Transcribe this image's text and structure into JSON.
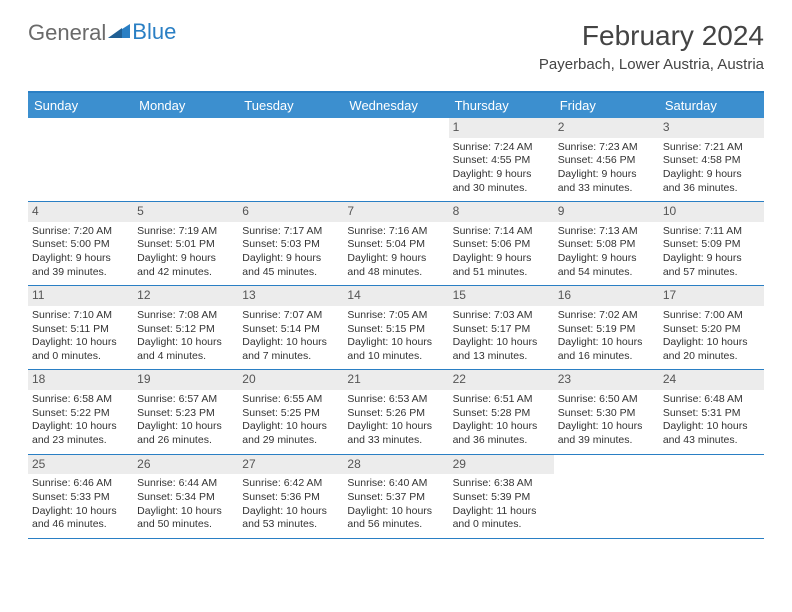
{
  "brand": {
    "text1": "General",
    "text2": "Blue"
  },
  "title": "February 2024",
  "location": "Payerbach, Lower Austria, Austria",
  "colors": {
    "header_bg": "#3c8fcf",
    "border": "#2a7fc4",
    "daynum_bg": "#ececec",
    "text": "#333333",
    "logo_blue": "#2a7fc4"
  },
  "day_names": [
    "Sunday",
    "Monday",
    "Tuesday",
    "Wednesday",
    "Thursday",
    "Friday",
    "Saturday"
  ],
  "weeks": [
    [
      {
        "day": null
      },
      {
        "day": null
      },
      {
        "day": null
      },
      {
        "day": null
      },
      {
        "day": "1",
        "sunrise": "Sunrise: 7:24 AM",
        "sunset": "Sunset: 4:55 PM",
        "daylight": "Daylight: 9 hours and 30 minutes."
      },
      {
        "day": "2",
        "sunrise": "Sunrise: 7:23 AM",
        "sunset": "Sunset: 4:56 PM",
        "daylight": "Daylight: 9 hours and 33 minutes."
      },
      {
        "day": "3",
        "sunrise": "Sunrise: 7:21 AM",
        "sunset": "Sunset: 4:58 PM",
        "daylight": "Daylight: 9 hours and 36 minutes."
      }
    ],
    [
      {
        "day": "4",
        "sunrise": "Sunrise: 7:20 AM",
        "sunset": "Sunset: 5:00 PM",
        "daylight": "Daylight: 9 hours and 39 minutes."
      },
      {
        "day": "5",
        "sunrise": "Sunrise: 7:19 AM",
        "sunset": "Sunset: 5:01 PM",
        "daylight": "Daylight: 9 hours and 42 minutes."
      },
      {
        "day": "6",
        "sunrise": "Sunrise: 7:17 AM",
        "sunset": "Sunset: 5:03 PM",
        "daylight": "Daylight: 9 hours and 45 minutes."
      },
      {
        "day": "7",
        "sunrise": "Sunrise: 7:16 AM",
        "sunset": "Sunset: 5:04 PM",
        "daylight": "Daylight: 9 hours and 48 minutes."
      },
      {
        "day": "8",
        "sunrise": "Sunrise: 7:14 AM",
        "sunset": "Sunset: 5:06 PM",
        "daylight": "Daylight: 9 hours and 51 minutes."
      },
      {
        "day": "9",
        "sunrise": "Sunrise: 7:13 AM",
        "sunset": "Sunset: 5:08 PM",
        "daylight": "Daylight: 9 hours and 54 minutes."
      },
      {
        "day": "10",
        "sunrise": "Sunrise: 7:11 AM",
        "sunset": "Sunset: 5:09 PM",
        "daylight": "Daylight: 9 hours and 57 minutes."
      }
    ],
    [
      {
        "day": "11",
        "sunrise": "Sunrise: 7:10 AM",
        "sunset": "Sunset: 5:11 PM",
        "daylight": "Daylight: 10 hours and 0 minutes."
      },
      {
        "day": "12",
        "sunrise": "Sunrise: 7:08 AM",
        "sunset": "Sunset: 5:12 PM",
        "daylight": "Daylight: 10 hours and 4 minutes."
      },
      {
        "day": "13",
        "sunrise": "Sunrise: 7:07 AM",
        "sunset": "Sunset: 5:14 PM",
        "daylight": "Daylight: 10 hours and 7 minutes."
      },
      {
        "day": "14",
        "sunrise": "Sunrise: 7:05 AM",
        "sunset": "Sunset: 5:15 PM",
        "daylight": "Daylight: 10 hours and 10 minutes."
      },
      {
        "day": "15",
        "sunrise": "Sunrise: 7:03 AM",
        "sunset": "Sunset: 5:17 PM",
        "daylight": "Daylight: 10 hours and 13 minutes."
      },
      {
        "day": "16",
        "sunrise": "Sunrise: 7:02 AM",
        "sunset": "Sunset: 5:19 PM",
        "daylight": "Daylight: 10 hours and 16 minutes."
      },
      {
        "day": "17",
        "sunrise": "Sunrise: 7:00 AM",
        "sunset": "Sunset: 5:20 PM",
        "daylight": "Daylight: 10 hours and 20 minutes."
      }
    ],
    [
      {
        "day": "18",
        "sunrise": "Sunrise: 6:58 AM",
        "sunset": "Sunset: 5:22 PM",
        "daylight": "Daylight: 10 hours and 23 minutes."
      },
      {
        "day": "19",
        "sunrise": "Sunrise: 6:57 AM",
        "sunset": "Sunset: 5:23 PM",
        "daylight": "Daylight: 10 hours and 26 minutes."
      },
      {
        "day": "20",
        "sunrise": "Sunrise: 6:55 AM",
        "sunset": "Sunset: 5:25 PM",
        "daylight": "Daylight: 10 hours and 29 minutes."
      },
      {
        "day": "21",
        "sunrise": "Sunrise: 6:53 AM",
        "sunset": "Sunset: 5:26 PM",
        "daylight": "Daylight: 10 hours and 33 minutes."
      },
      {
        "day": "22",
        "sunrise": "Sunrise: 6:51 AM",
        "sunset": "Sunset: 5:28 PM",
        "daylight": "Daylight: 10 hours and 36 minutes."
      },
      {
        "day": "23",
        "sunrise": "Sunrise: 6:50 AM",
        "sunset": "Sunset: 5:30 PM",
        "daylight": "Daylight: 10 hours and 39 minutes."
      },
      {
        "day": "24",
        "sunrise": "Sunrise: 6:48 AM",
        "sunset": "Sunset: 5:31 PM",
        "daylight": "Daylight: 10 hours and 43 minutes."
      }
    ],
    [
      {
        "day": "25",
        "sunrise": "Sunrise: 6:46 AM",
        "sunset": "Sunset: 5:33 PM",
        "daylight": "Daylight: 10 hours and 46 minutes."
      },
      {
        "day": "26",
        "sunrise": "Sunrise: 6:44 AM",
        "sunset": "Sunset: 5:34 PM",
        "daylight": "Daylight: 10 hours and 50 minutes."
      },
      {
        "day": "27",
        "sunrise": "Sunrise: 6:42 AM",
        "sunset": "Sunset: 5:36 PM",
        "daylight": "Daylight: 10 hours and 53 minutes."
      },
      {
        "day": "28",
        "sunrise": "Sunrise: 6:40 AM",
        "sunset": "Sunset: 5:37 PM",
        "daylight": "Daylight: 10 hours and 56 minutes."
      },
      {
        "day": "29",
        "sunrise": "Sunrise: 6:38 AM",
        "sunset": "Sunset: 5:39 PM",
        "daylight": "Daylight: 11 hours and 0 minutes."
      },
      {
        "day": null
      },
      {
        "day": null
      }
    ]
  ]
}
